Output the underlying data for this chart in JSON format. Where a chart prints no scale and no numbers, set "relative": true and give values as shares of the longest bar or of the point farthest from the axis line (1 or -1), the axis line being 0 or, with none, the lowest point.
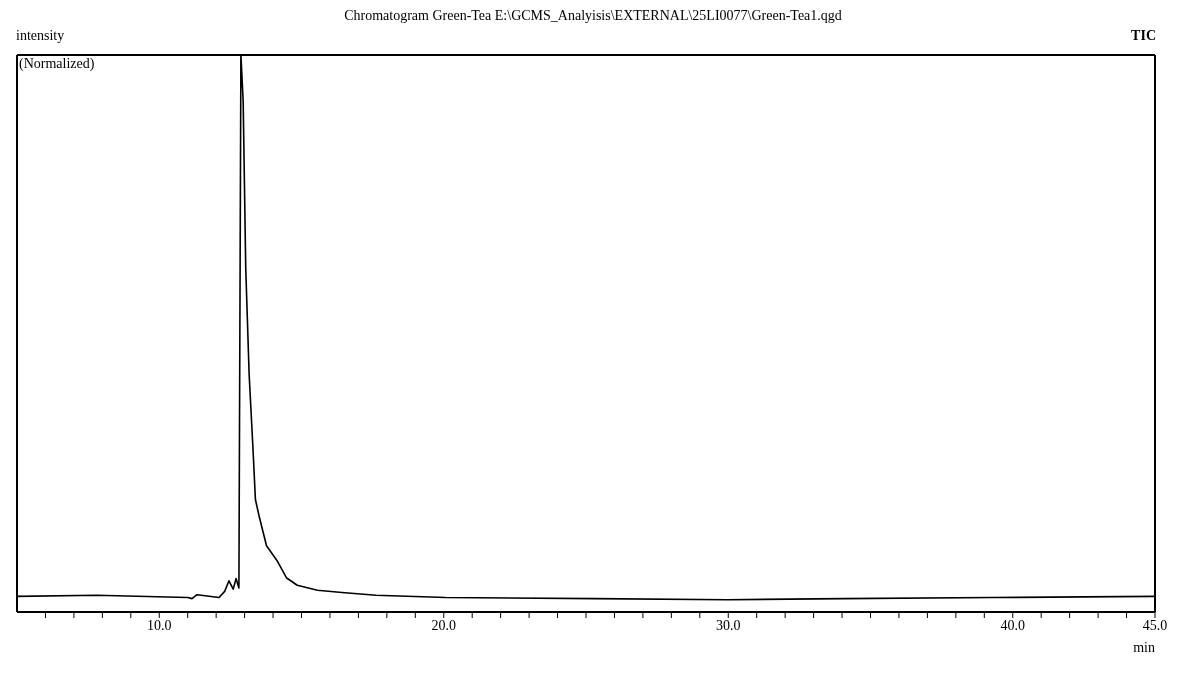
{
  "chart_data": {
    "type": "line",
    "title": "Chromatogram Green-Tea E:\\GCMS_Analyisis\\EXTERNAL\\25LI0077\\Green-Tea1.qgd",
    "ylabel": "intensity",
    "xlabel": "min",
    "annotations": [
      "(Normalized)",
      "TIC"
    ],
    "relative": true,
    "legend": false,
    "grid": false,
    "marker": "none",
    "line_style": "solid",
    "xlim": [
      5,
      45
    ],
    "xticks": [
      {
        "value": 6,
        "label": null
      },
      {
        "value": 7,
        "label": null
      },
      {
        "value": 8,
        "label": null
      },
      {
        "value": 9,
        "label": null
      },
      {
        "value": 10,
        "label": "10.0"
      },
      {
        "value": 11,
        "label": null
      },
      {
        "value": 12,
        "label": null
      },
      {
        "value": 13,
        "label": null
      },
      {
        "value": 14,
        "label": null
      },
      {
        "value": 15,
        "label": null
      },
      {
        "value": 16,
        "label": null
      },
      {
        "value": 17,
        "label": null
      },
      {
        "value": 18,
        "label": null
      },
      {
        "value": 19,
        "label": null
      },
      {
        "value": 20,
        "label": "20.0"
      },
      {
        "value": 21,
        "label": null
      },
      {
        "value": 22,
        "label": null
      },
      {
        "value": 23,
        "label": null
      },
      {
        "value": 24,
        "label": null
      },
      {
        "value": 25,
        "label": null
      },
      {
        "value": 26,
        "label": null
      },
      {
        "value": 27,
        "label": null
      },
      {
        "value": 28,
        "label": null
      },
      {
        "value": 29,
        "label": null
      },
      {
        "value": 30,
        "label": "30.0"
      },
      {
        "value": 31,
        "label": null
      },
      {
        "value": 32,
        "label": null
      },
      {
        "value": 33,
        "label": null
      },
      {
        "value": 34,
        "label": null
      },
      {
        "value": 35,
        "label": null
      },
      {
        "value": 36,
        "label": null
      },
      {
        "value": 37,
        "label": null
      },
      {
        "value": 38,
        "label": null
      },
      {
        "value": 39,
        "label": null
      },
      {
        "value": 40,
        "label": "40.0"
      },
      {
        "value": 41,
        "label": null
      },
      {
        "value": 42,
        "label": null
      },
      {
        "value": 43,
        "label": null
      },
      {
        "value": 44,
        "label": null
      },
      {
        "value": 45,
        "label": "45.0"
      }
    ],
    "series": [
      {
        "color": "#000000",
        "x": [
          5.0,
          7.8,
          11.0,
          11.15,
          11.33,
          12.1,
          12.3,
          12.45,
          12.6,
          12.7,
          12.8,
          12.87,
          12.95,
          13.04,
          13.16,
          13.29,
          13.38,
          13.52,
          13.77,
          14.13,
          14.48,
          14.85,
          15.56,
          16.42,
          17.62,
          20.07,
          25.3,
          30.0,
          34.06,
          39.3,
          45.0
        ],
        "values": [
          0.028,
          0.03,
          0.026,
          0.024,
          0.031,
          0.026,
          0.037,
          0.056,
          0.041,
          0.06,
          0.043,
          1.0,
          0.917,
          0.617,
          0.426,
          0.298,
          0.202,
          0.17,
          0.119,
          0.093,
          0.061,
          0.048,
          0.039,
          0.035,
          0.03,
          0.026,
          0.024,
          0.022,
          0.024,
          0.026,
          0.028
        ]
      }
    ]
  }
}
